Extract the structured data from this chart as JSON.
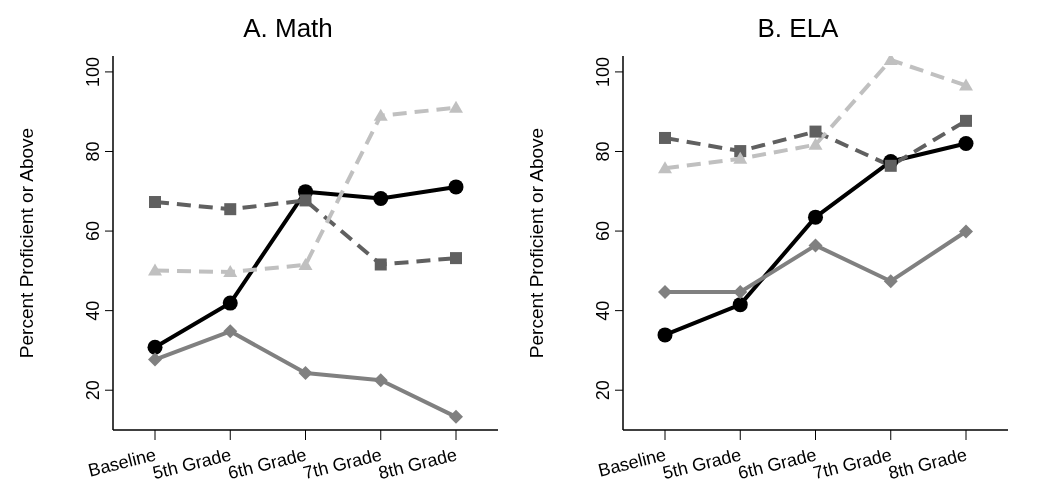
{
  "chart_data": [
    {
      "type": "line",
      "title": "A. Math",
      "ylabel": "Percent Proficient or Above",
      "categories": [
        "Baseline",
        "5th Grade",
        "6th Grade",
        "7th Grade",
        "8th Grade"
      ],
      "ylim": [
        10,
        104
      ],
      "yticks": [
        20,
        40,
        60,
        80,
        100
      ],
      "grid": false,
      "legend": false,
      "series": [
        {
          "color": "#000000",
          "marker": "circle",
          "line_style": "solid",
          "values": [
            30.8,
            41.9,
            69.9,
            68.2,
            71.1
          ]
        },
        {
          "color": "#606060",
          "marker": "square",
          "line_style": "dashed",
          "values": [
            67.3,
            65.5,
            67.7,
            51.6,
            53.2
          ]
        },
        {
          "color": "#c0c0c0",
          "marker": "triangle",
          "line_style": "dashed",
          "values": [
            50.1,
            49.7,
            51.5,
            89.0,
            91.0
          ]
        },
        {
          "color": "#808080",
          "marker": "diamond",
          "line_style": "solid",
          "values": [
            27.7,
            34.8,
            24.3,
            22.5,
            13.3
          ]
        }
      ]
    },
    {
      "type": "line",
      "title": "B. ELA",
      "ylabel": "Percent Proficient or Above",
      "categories": [
        "Baseline",
        "5th Grade",
        "6th Grade",
        "7th Grade",
        "8th Grade"
      ],
      "ylim": [
        10,
        104
      ],
      "yticks": [
        20,
        40,
        60,
        80,
        100
      ],
      "grid": false,
      "legend": false,
      "series": [
        {
          "color": "#000000",
          "marker": "circle",
          "line_style": "solid",
          "values": [
            33.9,
            41.5,
            63.5,
            77.5,
            82.0
          ]
        },
        {
          "color": "#606060",
          "marker": "square",
          "line_style": "dashed",
          "values": [
            83.4,
            80.1,
            85.0,
            76.4,
            87.7
          ]
        },
        {
          "color": "#c0c0c0",
          "marker": "triangle",
          "line_style": "dashed",
          "values": [
            75.8,
            78.2,
            81.7,
            103.0,
            96.6
          ]
        },
        {
          "color": "#808080",
          "marker": "diamond",
          "line_style": "solid",
          "values": [
            44.7,
            44.7,
            56.4,
            47.4,
            59.9
          ]
        }
      ]
    }
  ]
}
